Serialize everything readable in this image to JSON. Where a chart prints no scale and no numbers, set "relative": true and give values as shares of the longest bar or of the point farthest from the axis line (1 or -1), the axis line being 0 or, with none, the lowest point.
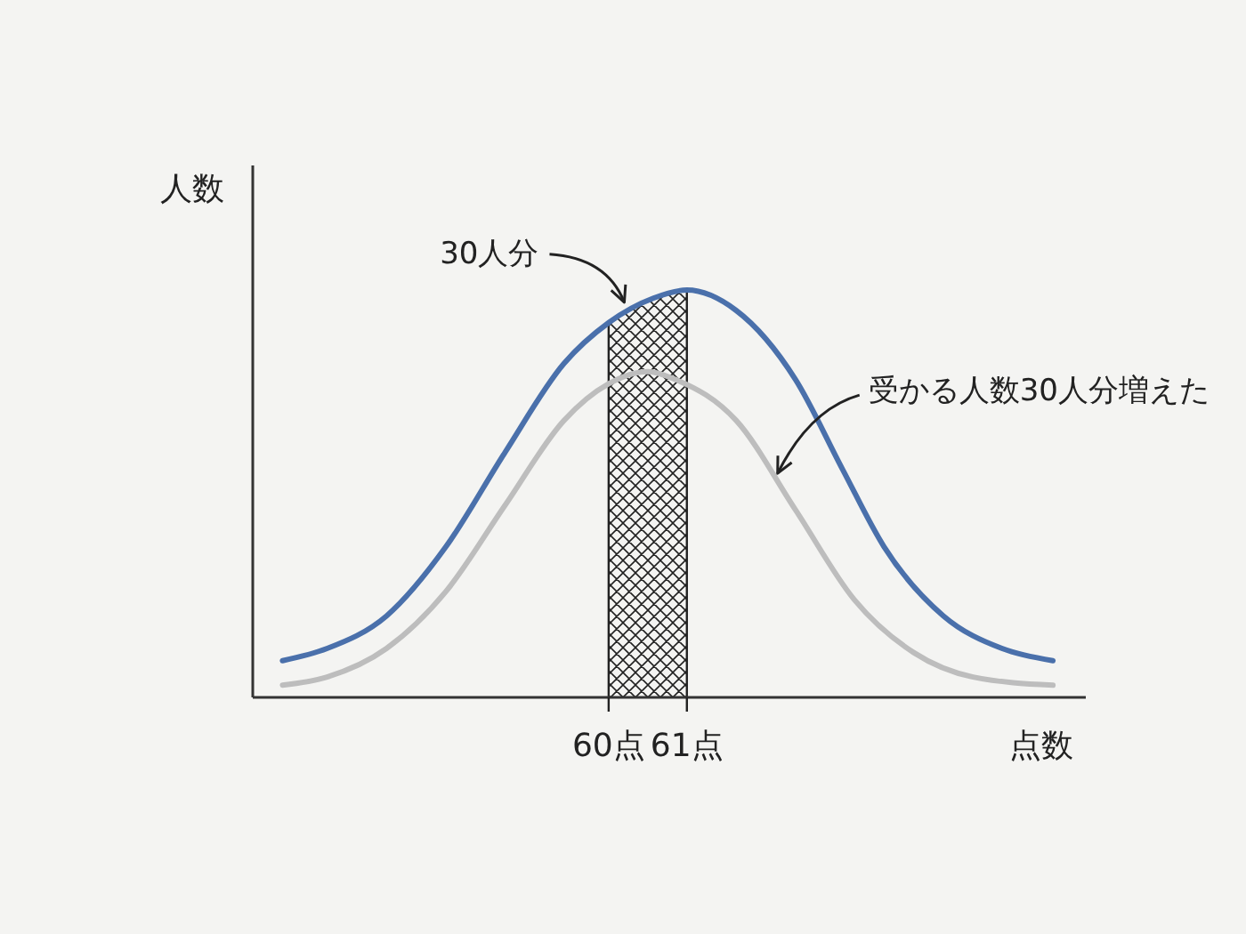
{
  "chart_data": {
    "type": "line",
    "relative": true,
    "xlabel": "点数",
    "ylabel": "人数",
    "xlim": [
      55.45,
      66.1
    ],
    "xticks": [
      {
        "value": 60,
        "label": "60点"
      },
      {
        "value": 61,
        "label": "61点"
      }
    ],
    "tick_labels": "x",
    "line_style": "solid",
    "series": [
      {
        "color": "#4a70ab",
        "x": [
          55.83,
          56.4,
          57.16,
          57.92,
          58.67,
          59.43,
          60,
          60.57,
          61,
          61.63,
          62.39,
          62.99,
          63.52,
          64.28,
          65.03,
          65.68
        ],
        "values": [
          0.09,
          0.12,
          0.2,
          0.37,
          0.6,
          0.82,
          0.92,
          0.98,
          1,
          0.95,
          0.78,
          0.56,
          0.37,
          0.2,
          0.12,
          0.09
        ]
      },
      {
        "color": "#bdbdbd",
        "x": [
          55.83,
          56.4,
          57.16,
          57.92,
          58.67,
          59.43,
          60,
          60.5,
          60.86,
          61.63,
          62.39,
          63.14,
          63.9,
          64.66,
          65.68
        ],
        "values": [
          0.03,
          0.05,
          0.12,
          0.26,
          0.47,
          0.68,
          0.77,
          0.8,
          0.78,
          0.68,
          0.46,
          0.24,
          0.11,
          0.05,
          0.03
        ]
      }
    ],
    "bands": [
      {
        "axis": "x",
        "from": 60,
        "to": 61,
        "color": "#222222"
      }
    ],
    "annotations": [
      {
        "text": "30人分",
        "x": 60.2,
        "y": 0.97
      },
      {
        "text": "受かる人数30人分増えた",
        "x": 62.16,
        "y": 0.55
      }
    ]
  }
}
